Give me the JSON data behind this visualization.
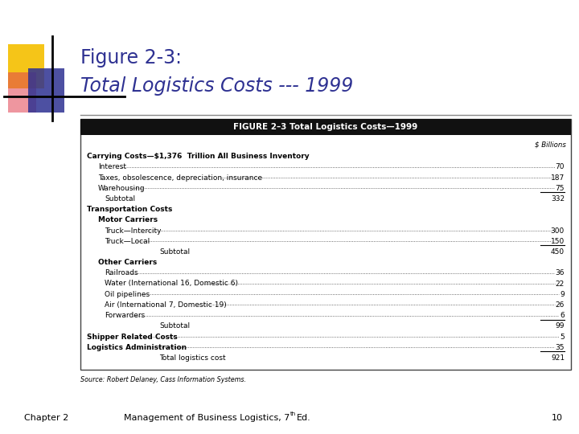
{
  "title_line1": "Figure 2-3:",
  "title_line2": "Total Logistics Costs --- 1999",
  "title_color": "#2e3192",
  "table_header": "FIGURE 2–3 Total Logistics Costs—1999",
  "col_header": "$ Billions",
  "rows": [
    {
      "indent": 0,
      "bold": true,
      "text": "Carrying Costs—$1,376  Trillion All Business Inventory",
      "value": null,
      "dotted": false,
      "underline": false
    },
    {
      "indent": 1,
      "bold": false,
      "text": "Interest",
      "value": "70",
      "dotted": true,
      "underline": false
    },
    {
      "indent": 1,
      "bold": false,
      "text": "Taxes, obsolescence, depreciation, insurance",
      "value": "187",
      "dotted": true,
      "underline": false
    },
    {
      "indent": 1,
      "bold": false,
      "text": "Warehousing",
      "value": "75",
      "dotted": true,
      "underline": true
    },
    {
      "indent": 2,
      "bold": false,
      "text": "Subtotal",
      "value": "332",
      "dotted": false,
      "underline": false
    },
    {
      "indent": 0,
      "bold": true,
      "text": "Transportation Costs",
      "value": null,
      "dotted": false,
      "underline": false
    },
    {
      "indent": 1,
      "bold": true,
      "text": "Motor Carriers",
      "value": null,
      "dotted": false,
      "underline": false
    },
    {
      "indent": 2,
      "bold": false,
      "text": "Truck—Intercity",
      "value": "300",
      "dotted": true,
      "underline": false
    },
    {
      "indent": 2,
      "bold": false,
      "text": "Truck—Local",
      "value": "150",
      "dotted": true,
      "underline": true
    },
    {
      "indent": 3,
      "bold": false,
      "text": "Subtotal",
      "value": "450",
      "dotted": false,
      "underline": false
    },
    {
      "indent": 1,
      "bold": true,
      "text": "Other Carriers",
      "value": null,
      "dotted": false,
      "underline": false
    },
    {
      "indent": 2,
      "bold": false,
      "text": "Railroads",
      "value": "36",
      "dotted": true,
      "underline": false
    },
    {
      "indent": 2,
      "bold": false,
      "text": "Water (International 16, Domestic 6)",
      "value": "22",
      "dotted": true,
      "underline": false
    },
    {
      "indent": 2,
      "bold": false,
      "text": "Oil pipelines",
      "value": "9",
      "dotted": true,
      "underline": false
    },
    {
      "indent": 2,
      "bold": false,
      "text": "Air (International 7, Domestic 19)",
      "value": "26",
      "dotted": true,
      "underline": false
    },
    {
      "indent": 2,
      "bold": false,
      "text": "Forwarders",
      "value": "6",
      "dotted": true,
      "underline": true
    },
    {
      "indent": 3,
      "bold": false,
      "text": "Subtotal",
      "value": "99",
      "dotted": false,
      "underline": false
    },
    {
      "indent": 0,
      "bold": true,
      "text": "Shipper Related Costs",
      "value": "5",
      "dotted": true,
      "underline": false
    },
    {
      "indent": 0,
      "bold": true,
      "text": "Logistics Administration",
      "value": "35",
      "dotted": true,
      "underline": true
    },
    {
      "indent": 3,
      "bold": false,
      "text": "Total logistics cost",
      "value": "921",
      "dotted": false,
      "underline": false
    }
  ],
  "source_text": "Source: Robert Delaney, Cass Information Systems.",
  "footer_left": "Chapter 2",
  "footer_center": "Management of Business Logistics, 7",
  "footer_th": "th",
  "footer_right": "Ed.",
  "footer_page": "10",
  "bg_color": "#ffffff",
  "header_bg": "#111111",
  "header_text_color": "#ffffff",
  "table_bg": "#ffffff",
  "table_border_color": "#444444",
  "yellow_color": "#f5c518",
  "blue_color": "#2e3192",
  "red_color": "#e04050"
}
